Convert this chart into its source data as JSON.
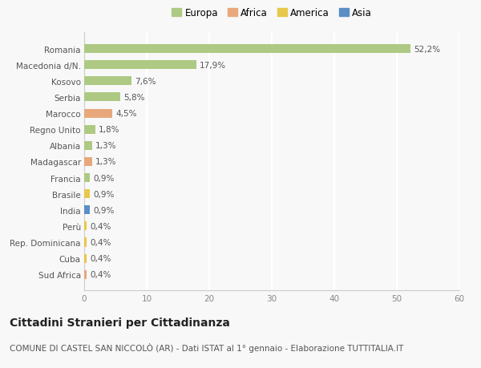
{
  "categories": [
    "Romania",
    "Macedonia d/N.",
    "Kosovo",
    "Serbia",
    "Marocco",
    "Regno Unito",
    "Albania",
    "Madagascar",
    "Francia",
    "Brasile",
    "India",
    "Perù",
    "Rep. Dominicana",
    "Cuba",
    "Sud Africa"
  ],
  "values": [
    52.2,
    17.9,
    7.6,
    5.8,
    4.5,
    1.8,
    1.3,
    1.3,
    0.9,
    0.9,
    0.9,
    0.4,
    0.4,
    0.4,
    0.4
  ],
  "labels": [
    "52,2%",
    "17,9%",
    "7,6%",
    "5,8%",
    "4,5%",
    "1,8%",
    "1,3%",
    "1,3%",
    "0,9%",
    "0,9%",
    "0,9%",
    "0,4%",
    "0,4%",
    "0,4%",
    "0,4%"
  ],
  "continents": [
    "Europa",
    "Europa",
    "Europa",
    "Europa",
    "Africa",
    "Europa",
    "Europa",
    "Africa",
    "Europa",
    "America",
    "Asia",
    "America",
    "America",
    "America",
    "Africa"
  ],
  "colors": {
    "Europa": "#adc983",
    "Africa": "#e8a87c",
    "America": "#e8c84a",
    "Asia": "#5b8ec4"
  },
  "xlim": [
    0,
    60
  ],
  "xticks": [
    0,
    10,
    20,
    30,
    40,
    50,
    60
  ],
  "title": "Cittadini Stranieri per Cittadinanza",
  "subtitle": "COMUNE DI CASTEL SAN NICCOLÒ (AR) - Dati ISTAT al 1° gennaio - Elaborazione TUTTITALIA.IT",
  "background_color": "#f8f8f8",
  "grid_color": "#ffffff",
  "bar_height": 0.55,
  "title_fontsize": 10,
  "subtitle_fontsize": 7.5,
  "label_fontsize": 7.5,
  "tick_fontsize": 7.5,
  "legend_fontsize": 8.5
}
